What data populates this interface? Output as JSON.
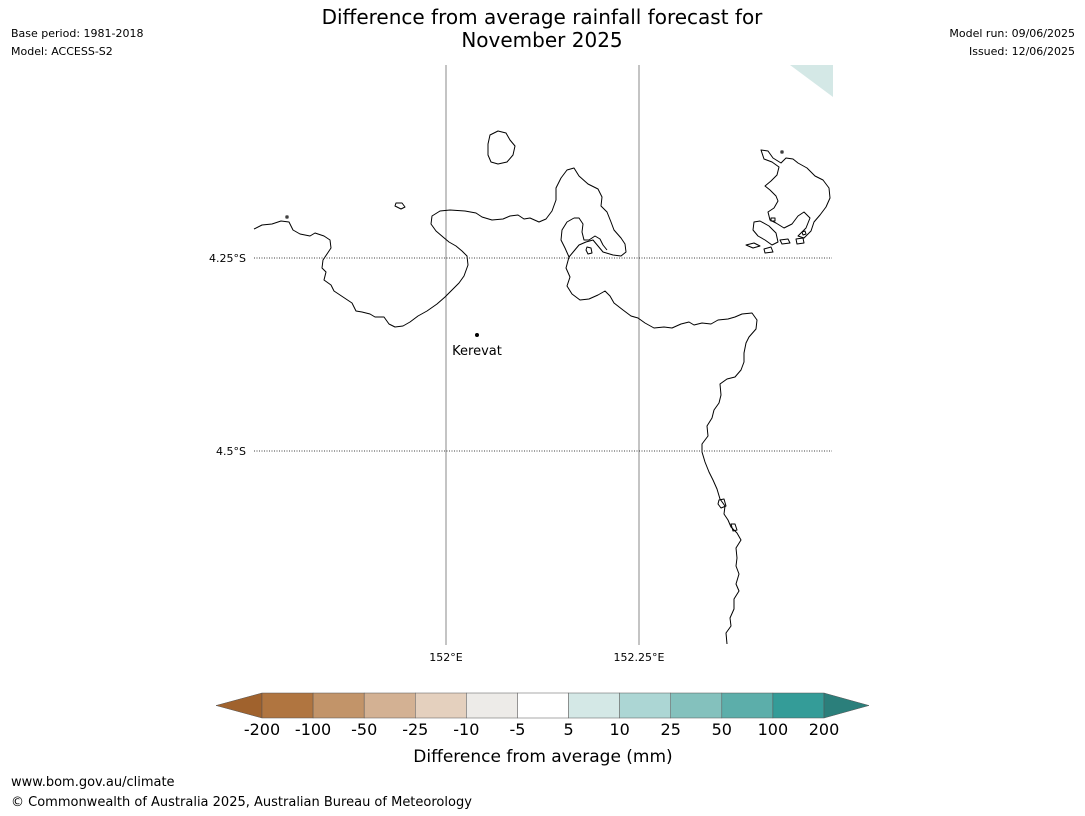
{
  "header": {
    "title_line1": "Difference from average rainfall forecast for",
    "title_line2": "November 2025",
    "base_period": "Base period: 1981-2018",
    "model": "Model: ACCESS-S2",
    "model_run": "Model run: 09/06/2025",
    "issued": "Issued: 12/06/2025"
  },
  "map": {
    "latitude_labels": [
      "4.25°S",
      "4.5°S"
    ],
    "longitude_labels": [
      "152°E",
      "152.25°E"
    ],
    "place": "Kerevat",
    "coastline_color": "#000000",
    "anomaly_fill": "#d4e8e6"
  },
  "colorbar": {
    "title": "Difference from average (mm)",
    "ticks": [
      "-200",
      "-100",
      "-50",
      "-25",
      "-10",
      "-5",
      "5",
      "10",
      "25",
      "50",
      "100",
      "200"
    ],
    "colors": [
      "#a0622d",
      "#b07540",
      "#c29469",
      "#d3b193",
      "#e4d0be",
      "#edebe8",
      "#ffffff",
      "#d4e8e6",
      "#acd6d4",
      "#84c1bd",
      "#5caeaa",
      "#349c98",
      "#2b7f7b"
    ]
  },
  "footer": {
    "url": "www.bom.gov.au/climate",
    "copyright": "© Commonwealth of Australia 2025, Australian Bureau of Meteorology"
  }
}
